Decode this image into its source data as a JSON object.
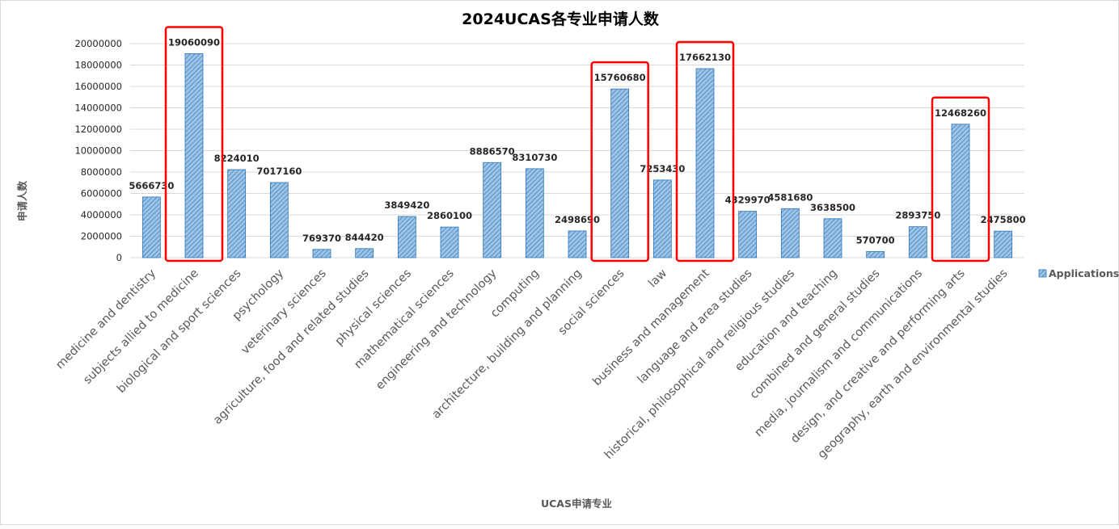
{
  "chart_data": {
    "type": "bar",
    "title": "2024UCAS各专业申请人数",
    "xlabel": "UCAS申请专业",
    "ylabel": "申请人数",
    "ylim": [
      0,
      20000000
    ],
    "yticks": [
      0,
      2000000,
      4000000,
      6000000,
      8000000,
      10000000,
      12000000,
      14000000,
      16000000,
      18000000,
      20000000
    ],
    "grid": true,
    "legend": "right",
    "categories": [
      "medicine and dentistry",
      "subjects allied to medicine",
      "biological and sport sciences",
      "psychology",
      "veterinary sciences",
      "agriculture, food and related studies",
      "physical sciences",
      "mathematical sciences",
      "engineering and technology",
      "computing",
      "architecture, building and planning",
      "social sciences",
      "law",
      "business and management",
      "language and area studies",
      "historical, philosophical and religious studies",
      "education and teaching",
      "combined and general studies",
      "media, journalism and communications",
      "design, and creative and performing arts",
      "geography, earth and environmental studies"
    ],
    "series": [
      {
        "name": "Applications",
        "values": [
          5666730,
          19060090,
          8224010,
          7017160,
          769370,
          844420,
          3849420,
          2860100,
          8886570,
          8310730,
          2498690,
          15760680,
          7253430,
          17662130,
          4329970,
          4581680,
          3638500,
          570700,
          2893750,
          12468260,
          2475800
        ]
      }
    ],
    "highlighted_categories": [
      "subjects allied to medicine",
      "social sciences",
      "business and management",
      "design, and creative and performing arts"
    ],
    "colors": {
      "bar_fill": "#9dc3e6",
      "bar_stroke": "#2e75b6",
      "highlight_box": "#ff0000",
      "grid": "#d9d9d9"
    }
  }
}
